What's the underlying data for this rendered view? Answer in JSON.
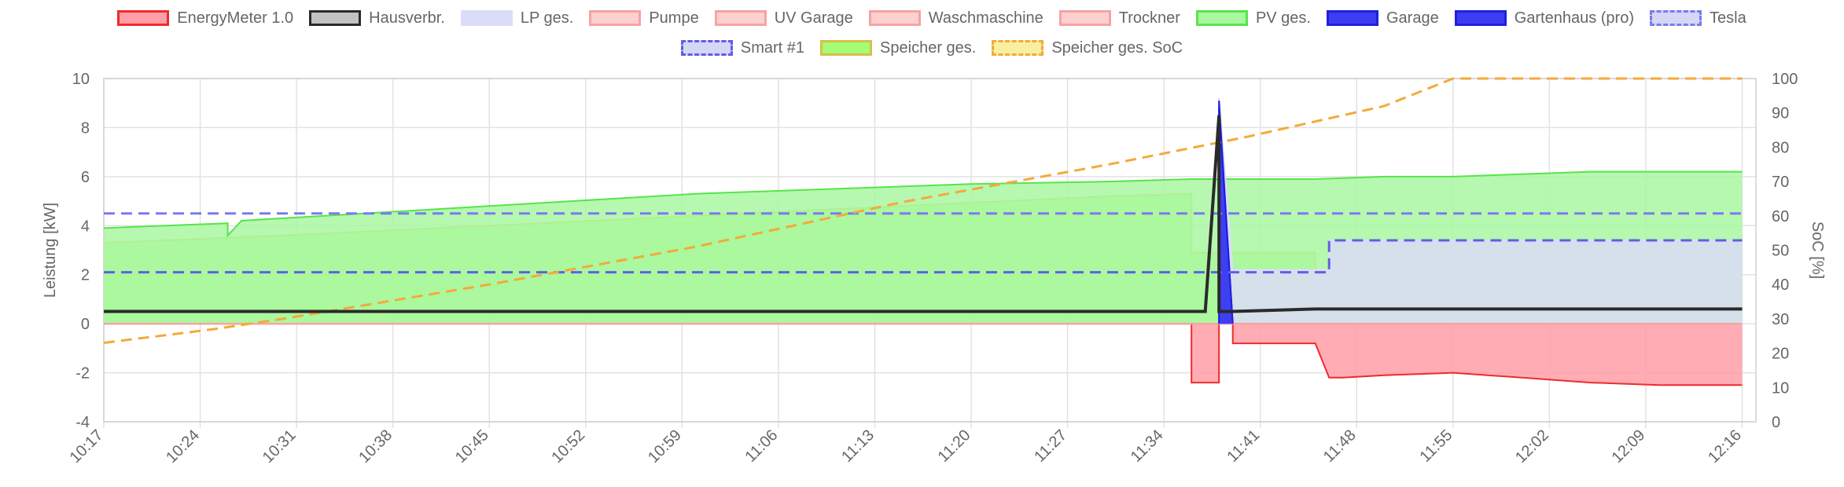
{
  "chart_data": {
    "type": "area",
    "title": "",
    "xlabel": "",
    "ylabel": "Leistung [kW]",
    "ylabel_right": "SoC [%]",
    "ylim": [
      -4,
      10
    ],
    "ylim_right": [
      0,
      100
    ],
    "yticks": [
      -4,
      -2,
      0,
      2,
      4,
      6,
      8,
      10
    ],
    "yticks_right": [
      0,
      10,
      20,
      30,
      40,
      50,
      60,
      70,
      80,
      90,
      100
    ],
    "x_range": [
      "10:17",
      "12:17"
    ],
    "xticks": [
      "10:17",
      "10:24",
      "10:31",
      "10:38",
      "10:45",
      "10:52",
      "10:59",
      "11:06",
      "11:13",
      "11:20",
      "11:27",
      "11:34",
      "11:41",
      "11:48",
      "11:55",
      "12:02",
      "12:09",
      "12:16"
    ],
    "grid": true,
    "legend_position": "top",
    "series": [
      {
        "name": "EnergyMeter 1.0",
        "axis": "left",
        "fill": "#ff9ea8",
        "stroke": "#ee2b2b",
        "style": "area",
        "x": [
          "10:17",
          "10:30",
          "10:45",
          "11:00",
          "11:10",
          "11:20",
          "11:30",
          "11:36",
          "11:36",
          "11:38",
          "11:38",
          "11:39",
          "11:39",
          "11:45",
          "11:46",
          "11:47",
          "11:50",
          "11:55",
          "12:00",
          "12:05",
          "12:10",
          "12:16"
        ],
        "y": [
          0,
          0,
          0,
          0,
          0,
          0,
          0,
          0,
          -2.4,
          -2.4,
          0,
          0,
          -0.8,
          -0.8,
          -2.2,
          -2.2,
          -2.1,
          -2.0,
          -2.2,
          -2.4,
          -2.5,
          -2.5
        ]
      },
      {
        "name": "Hausverbr.",
        "axis": "left",
        "fill": "#c2c2c2",
        "stroke": "#2a2a2a",
        "style": "line",
        "x": [
          "10:17",
          "10:40",
          "11:00",
          "11:20",
          "11:37",
          "11:38",
          "11:38",
          "11:39",
          "11:45",
          "11:50",
          "11:55",
          "12:00",
          "12:05",
          "12:10",
          "12:16"
        ],
        "y": [
          0.5,
          0.5,
          0.5,
          0.5,
          0.5,
          8.5,
          0.5,
          0.5,
          0.6,
          0.6,
          0.6,
          0.6,
          0.6,
          0.6,
          0.6
        ]
      },
      {
        "name": "LP ges.",
        "axis": "left",
        "fill": "#dcdcf8",
        "stroke": "#dcdcf8",
        "style": "area",
        "x": [
          "10:17",
          "11:38",
          "11:38",
          "11:39",
          "11:46",
          "11:46",
          "12:16"
        ],
        "y": [
          0,
          0,
          9.2,
          2.2,
          2.2,
          3.4,
          3.4
        ]
      },
      {
        "name": "Pumpe",
        "axis": "left",
        "fill": "#ffd0d0",
        "stroke": "#f6a3a3",
        "style": "area",
        "x": [
          "10:17",
          "12:16"
        ],
        "y": [
          0,
          0
        ]
      },
      {
        "name": "UV Garage",
        "axis": "left",
        "fill": "#ffd0d0",
        "stroke": "#f6a3a3",
        "style": "area",
        "x": [
          "10:17",
          "12:16"
        ],
        "y": [
          0,
          0
        ]
      },
      {
        "name": "Waschmaschine",
        "axis": "left",
        "fill": "#ffd0d0",
        "stroke": "#f6a3a3",
        "style": "area",
        "x": [
          "10:17",
          "12:16"
        ],
        "y": [
          0,
          0
        ]
      },
      {
        "name": "Trockner",
        "axis": "left",
        "fill": "#ffd0d0",
        "stroke": "#f6a3a3",
        "style": "area",
        "x": [
          "10:17",
          "12:16"
        ],
        "y": [
          0,
          0
        ]
      },
      {
        "name": "PV ges.",
        "axis": "left",
        "fill": "#a9f7a1",
        "stroke": "#58e44c",
        "style": "area",
        "x": [
          "10:17",
          "10:26",
          "10:26",
          "10:27",
          "10:45",
          "11:00",
          "11:10",
          "11:20",
          "11:30",
          "11:36",
          "11:38",
          "11:45",
          "11:50",
          "11:55",
          "12:00",
          "12:05",
          "12:10",
          "12:16"
        ],
        "y": [
          3.9,
          4.1,
          3.6,
          4.2,
          4.8,
          5.3,
          5.5,
          5.7,
          5.8,
          5.9,
          5.9,
          5.9,
          6.0,
          6.0,
          6.1,
          6.2,
          6.2,
          6.2
        ]
      },
      {
        "name": "Garage",
        "axis": "left",
        "fill": "#3c3cf2",
        "stroke": "#1f1fe0",
        "style": "area",
        "x": [
          "11:38",
          "11:38",
          "11:39"
        ],
        "y": [
          0,
          9.1,
          0
        ]
      },
      {
        "name": "Gartenhaus (pro)",
        "axis": "left",
        "fill": "#3c3cf2",
        "stroke": "#1f1fe0",
        "style": "area",
        "x": [
          "11:38",
          "11:38",
          "11:39"
        ],
        "y": [
          0,
          8.8,
          0
        ]
      },
      {
        "name": "Tesla",
        "axis": "left",
        "fill": "#d6d6f5",
        "stroke": "#7a7af0",
        "style": "dashed",
        "x": [
          "10:17",
          "12:16"
        ],
        "y": [
          4.5,
          4.5
        ]
      },
      {
        "name": "Smart #1",
        "axis": "left",
        "fill": "#d6d6f5",
        "stroke": "#5f5fe6",
        "style": "dashed",
        "x": [
          "10:17",
          "11:39",
          "11:39",
          "11:46",
          "11:46",
          "12:16"
        ],
        "y": [
          2.1,
          2.1,
          2.1,
          2.1,
          3.4,
          3.4
        ]
      },
      {
        "name": "Speicher ges.",
        "axis": "left",
        "fill": "#a6fc75",
        "stroke": "#d4c24a",
        "style": "area",
        "x": [
          "10:17",
          "10:30",
          "10:45",
          "11:00",
          "11:15",
          "11:30",
          "11:36",
          "11:36",
          "11:45",
          "11:45",
          "11:47",
          "11:50",
          "12:16"
        ],
        "y": [
          3.3,
          3.6,
          4.0,
          4.4,
          4.8,
          5.2,
          5.3,
          2.9,
          2.9,
          1.2,
          1.8,
          1.8,
          1.8
        ]
      },
      {
        "name": "Speicher ges. SoC",
        "axis": "right",
        "fill": "#f7f0a0",
        "stroke": "#f5a93a",
        "style": "dashed",
        "x": [
          "10:17",
          "10:25",
          "10:30",
          "10:45",
          "11:00",
          "11:15",
          "11:30",
          "11:40",
          "11:50",
          "11:55",
          "12:00",
          "12:16"
        ],
        "y": [
          23,
          27,
          30,
          40,
          51,
          64,
          75,
          83,
          92,
          100,
          100,
          100
        ]
      }
    ]
  }
}
